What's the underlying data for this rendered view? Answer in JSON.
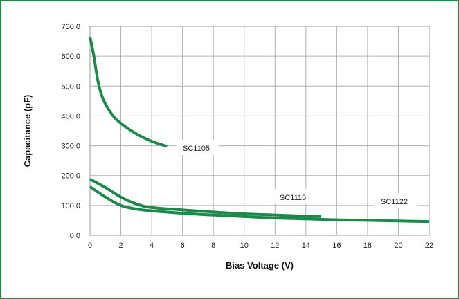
{
  "chart_data": {
    "type": "line",
    "xlabel": "Bias Voltage (V)",
    "ylabel": "Capacitance (pF)",
    "xlim": [
      0,
      22
    ],
    "ylim": [
      0,
      700
    ],
    "xticks": [
      0,
      2,
      4,
      6,
      8,
      10,
      12,
      14,
      16,
      18,
      20,
      22
    ],
    "yticks": [
      "0.0",
      "100.0",
      "200.0",
      "300.0",
      "400.0",
      "500.0",
      "600.0",
      "700.0"
    ],
    "grid": true,
    "colors": {
      "line": "#1a8a4a",
      "grid": "#b0b0b0",
      "border": "#1a8a4a"
    },
    "series": [
      {
        "name": "SC1105",
        "x": [
          0,
          0.25,
          0.5,
          0.75,
          1,
          1.5,
          2,
          3,
          4,
          5
        ],
        "y": [
          665,
          600,
          520,
          470,
          440,
          400,
          375,
          340,
          315,
          298
        ]
      },
      {
        "name": "SC1115",
        "x": [
          0,
          1,
          2,
          3,
          4,
          6,
          8,
          10,
          12,
          14,
          15
        ],
        "y": [
          188,
          160,
          128,
          105,
          93,
          85,
          78,
          72,
          68,
          64,
          63
        ]
      },
      {
        "name": "SC1122",
        "x": [
          0,
          1,
          2,
          3,
          4,
          6,
          8,
          10,
          12,
          14,
          16,
          18,
          20,
          22
        ],
        "y": [
          163,
          128,
          100,
          88,
          82,
          74,
          68,
          63,
          58,
          55,
          52,
          50,
          48,
          46
        ]
      }
    ]
  }
}
